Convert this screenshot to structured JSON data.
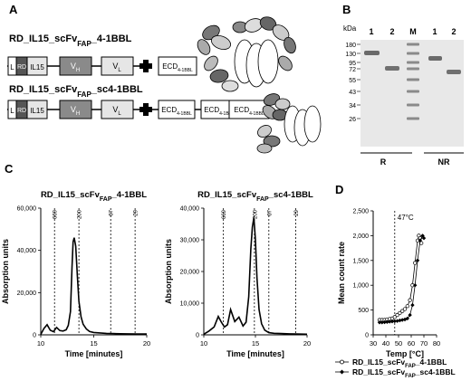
{
  "panel_letters": {
    "a": "A",
    "b": "B",
    "c": "C",
    "d": "D"
  },
  "constructs": {
    "first": {
      "title_main": "RD_IL15_scFv",
      "title_sub": "FAP",
      "title_tail": "_4-1BBL",
      "domains": {
        "leader": "L",
        "rd": "RD",
        "il15": "IL15",
        "vh_main": "V",
        "vh_sub": "H",
        "vl_main": "V",
        "vl_sub": "L",
        "ecd_main": "ECD",
        "ecd_sub": "4-1BBL"
      }
    },
    "second": {
      "title_main": "RD_IL15_scFv",
      "title_sub": "FAP",
      "title_tail": "_sc4-1BBL",
      "domains": {
        "leader": "L",
        "rd": "RD",
        "il15": "IL15",
        "vh_main": "V",
        "vh_sub": "H",
        "vl_main": "V",
        "vl_sub": "L",
        "ecd_main": "ECD",
        "ecd_sub": "4-1BBL"
      }
    }
  },
  "gel": {
    "kda_label": "kDa",
    "markers": [
      "180",
      "130",
      "95",
      "72",
      "55",
      "43",
      "34",
      "26"
    ],
    "lanes": [
      "1",
      "2",
      "M",
      "1",
      "2"
    ],
    "conditions": [
      "R",
      "NR"
    ]
  },
  "chart_data": [
    {
      "type": "line",
      "title_main": "RD_IL15_scFv",
      "title_sub": "FAP",
      "title_tail": "_4-1BBL",
      "xlabel": "Time [minutes]",
      "ylabel": "Absorption units",
      "xlim": [
        10,
        20
      ],
      "ylim": [
        0,
        60000
      ],
      "x_ticks": [
        "10",
        "15",
        "20"
      ],
      "y_ticks": [
        "0",
        "20,000",
        "40,000",
        "60,000"
      ],
      "standards": [
        {
          "label": "669",
          "x": 11.3
        },
        {
          "label": "200",
          "x": 13.6
        },
        {
          "label": "67",
          "x": 16.6
        },
        {
          "label": "29",
          "x": 18.9
        }
      ],
      "series": [
        {
          "x": [
            10.0,
            10.3,
            10.6,
            10.9,
            11.2,
            11.5,
            11.8,
            12.1,
            12.4,
            12.6,
            12.8,
            12.95,
            13.05,
            13.15,
            13.3,
            13.45,
            13.6,
            13.8,
            14.0,
            14.3,
            14.6,
            15.0,
            15.6,
            16.2,
            16.8,
            17.5,
            18.2,
            19.0,
            20.0
          ],
          "y": [
            200,
            3000,
            4800,
            2200,
            1500,
            3500,
            2000,
            1800,
            2400,
            4500,
            11000,
            32000,
            44000,
            46000,
            42000,
            28000,
            16000,
            8500,
            5000,
            2800,
            1600,
            1100,
            900,
            700,
            600,
            500,
            450,
            420,
            400
          ]
        }
      ]
    },
    {
      "type": "line",
      "title_main": "RD_IL15_scFv",
      "title_sub": "FAP",
      "title_tail": "_sc4-1BBL",
      "xlabel": "Time [minutes]",
      "ylabel": "Absorption units",
      "xlim": [
        10,
        20
      ],
      "ylim": [
        0,
        40000
      ],
      "x_ticks": [
        "10",
        "15",
        "20"
      ],
      "y_ticks": [
        "0",
        "10,000",
        "20,000",
        "30,000",
        "40,000"
      ],
      "standards": [
        {
          "label": "669",
          "x": 11.9
        },
        {
          "label": "200",
          "x": 14.9
        },
        {
          "label": "67",
          "x": 16.3
        },
        {
          "label": "29",
          "x": 18.9
        }
      ],
      "series": [
        {
          "x": [
            10.0,
            10.5,
            11.0,
            11.4,
            11.7,
            12.0,
            12.3,
            12.6,
            13.0,
            13.4,
            13.8,
            14.1,
            14.35,
            14.55,
            14.7,
            14.85,
            15.0,
            15.15,
            15.35,
            15.6,
            15.9,
            16.3,
            16.8,
            17.5,
            18.3,
            19.0,
            20.0
          ],
          "y": [
            200,
            1200,
            2500,
            5800,
            4000,
            2500,
            3200,
            8000,
            4200,
            5600,
            2800,
            4000,
            12000,
            27000,
            34000,
            37000,
            30000,
            18000,
            8000,
            3500,
            1500,
            700,
            500,
            400,
            300,
            250,
            200
          ]
        }
      ]
    },
    {
      "type": "line",
      "xlabel": "Temp [°C]",
      "ylabel": "Mean count rate",
      "xlim": [
        30,
        80
      ],
      "ylim": [
        0,
        2500
      ],
      "x_ticks": [
        "30",
        "40",
        "50",
        "60",
        "70",
        "80"
      ],
      "y_ticks": [
        "0",
        "500",
        "1,000",
        "1,500",
        "2,000",
        "2,500"
      ],
      "annotation": {
        "label": "47°C",
        "x": 47
      },
      "series": [
        {
          "name_main": "RD_IL15_scFv",
          "name_sub": "FAP",
          "name_tail": "_4-1BBL",
          "marker": "open-circle",
          "x": [
            35,
            37,
            39,
            41,
            43,
            45,
            47,
            49,
            51,
            53,
            55,
            57,
            59,
            61,
            63,
            65,
            66,
            67,
            68
          ],
          "y": [
            300,
            300,
            300,
            310,
            320,
            330,
            360,
            400,
            440,
            480,
            520,
            580,
            700,
            1000,
            1450,
            1900,
            2000,
            1950,
            1850
          ]
        },
        {
          "name_main": "RD_IL15_scFv",
          "name_sub": "FAP",
          "name_tail": "_sc4-1BBL",
          "marker": "filled-diamond",
          "x": [
            35,
            37,
            39,
            41,
            43,
            45,
            47,
            49,
            51,
            53,
            55,
            57,
            59,
            61,
            63,
            65,
            67,
            69,
            70
          ],
          "y": [
            250,
            250,
            255,
            260,
            265,
            270,
            275,
            280,
            290,
            300,
            310,
            330,
            400,
            600,
            1000,
            1500,
            1900,
            2000,
            1950
          ]
        }
      ]
    }
  ]
}
